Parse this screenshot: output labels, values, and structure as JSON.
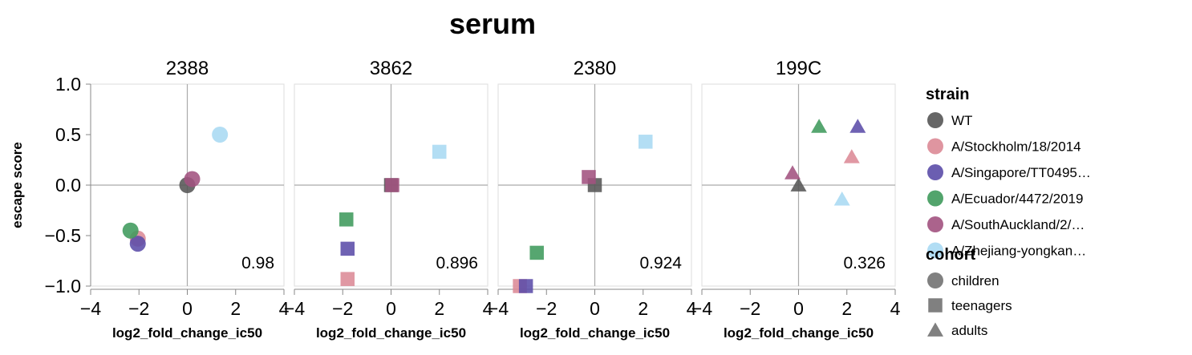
{
  "chart_data": {
    "type": "scatter",
    "title": "serum",
    "xlabel": "log2_fold_change_ic50",
    "ylabel": "escape score",
    "xlim": [
      -4,
      4
    ],
    "ylim": [
      -1.0,
      1.0
    ],
    "x_ticks": [
      "−4",
      "−2",
      "0",
      "2",
      "4"
    ],
    "y_ticks": [
      "1.0",
      "0.5",
      "0.0",
      "−0.5",
      "−1.0"
    ],
    "grid": "zero lines only",
    "legend_placement": "right",
    "legends": {
      "strain": {
        "title": "strain",
        "items": [
          {
            "label": "WT",
            "color": "#555555"
          },
          {
            "label": "A/Stockholm/18/2014",
            "color": "#dc8a96"
          },
          {
            "label": "A/Singapore/TT0495…",
            "color": "#5b4ca8"
          },
          {
            "label": "A/Ecuador/4472/2019",
            "color": "#3f9a5c"
          },
          {
            "label": "A/SouthAuckland/2/…",
            "color": "#a2527f"
          },
          {
            "label": "A/Zhejiang-yongkan…",
            "color": "#a9d9f3"
          }
        ]
      },
      "cohort": {
        "title": "cohort",
        "items": [
          {
            "label": "children",
            "shape": "circle"
          },
          {
            "label": "teenagers",
            "shape": "square"
          },
          {
            "label": "adults",
            "shape": "triangle"
          }
        ]
      }
    },
    "facets": [
      {
        "name": "2388",
        "cohort": "children",
        "correlation": "0.98",
        "points": [
          {
            "strain": "WT",
            "x": 0.0,
            "y": 0.0
          },
          {
            "strain": "A/Stockholm/18/2014",
            "x": -2.05,
            "y": -0.53
          },
          {
            "strain": "A/Singapore/TT0495…",
            "x": -2.05,
            "y": -0.58
          },
          {
            "strain": "A/Ecuador/4472/2019",
            "x": -2.35,
            "y": -0.45
          },
          {
            "strain": "A/SouthAuckland/2/…",
            "x": 0.2,
            "y": 0.06
          },
          {
            "strain": "A/Zhejiang-yongkan…",
            "x": 1.35,
            "y": 0.5
          }
        ]
      },
      {
        "name": "3862",
        "cohort": "teenagers",
        "correlation": "0.896",
        "points": [
          {
            "strain": "WT",
            "x": 0.0,
            "y": 0.0
          },
          {
            "strain": "A/Stockholm/18/2014",
            "x": -1.8,
            "y": -0.93
          },
          {
            "strain": "A/Singapore/TT0495…",
            "x": -1.8,
            "y": -0.63
          },
          {
            "strain": "A/Ecuador/4472/2019",
            "x": -1.85,
            "y": -0.34
          },
          {
            "strain": "A/SouthAuckland/2/…",
            "x": 0.05,
            "y": 0.0
          },
          {
            "strain": "A/Zhejiang-yongkan…",
            "x": 2.0,
            "y": 0.33
          }
        ]
      },
      {
        "name": "2380",
        "cohort": "teenagers",
        "correlation": "0.924",
        "points": [
          {
            "strain": "WT",
            "x": 0.0,
            "y": 0.0
          },
          {
            "strain": "A/Stockholm/18/2014",
            "x": -3.1,
            "y": -1.0
          },
          {
            "strain": "A/Singapore/TT0495…",
            "x": -2.85,
            "y": -1.0
          },
          {
            "strain": "A/Ecuador/4472/2019",
            "x": -2.4,
            "y": -0.67
          },
          {
            "strain": "A/SouthAuckland/2/…",
            "x": -0.25,
            "y": 0.08
          },
          {
            "strain": "A/Zhejiang-yongkan…",
            "x": 2.1,
            "y": 0.43
          }
        ]
      },
      {
        "name": "199C",
        "cohort": "adults",
        "correlation": "0.326",
        "points": [
          {
            "strain": "WT",
            "x": 0.0,
            "y": 0.0
          },
          {
            "strain": "A/Stockholm/18/2014",
            "x": 2.2,
            "y": 0.28
          },
          {
            "strain": "A/Singapore/TT0495…",
            "x": 2.45,
            "y": 0.58
          },
          {
            "strain": "A/Ecuador/4472/2019",
            "x": 0.85,
            "y": 0.58
          },
          {
            "strain": "A/SouthAuckland/2/…",
            "x": -0.25,
            "y": 0.12
          },
          {
            "strain": "A/Zhejiang-yongkan…",
            "x": 1.8,
            "y": -0.14
          }
        ]
      }
    ]
  }
}
